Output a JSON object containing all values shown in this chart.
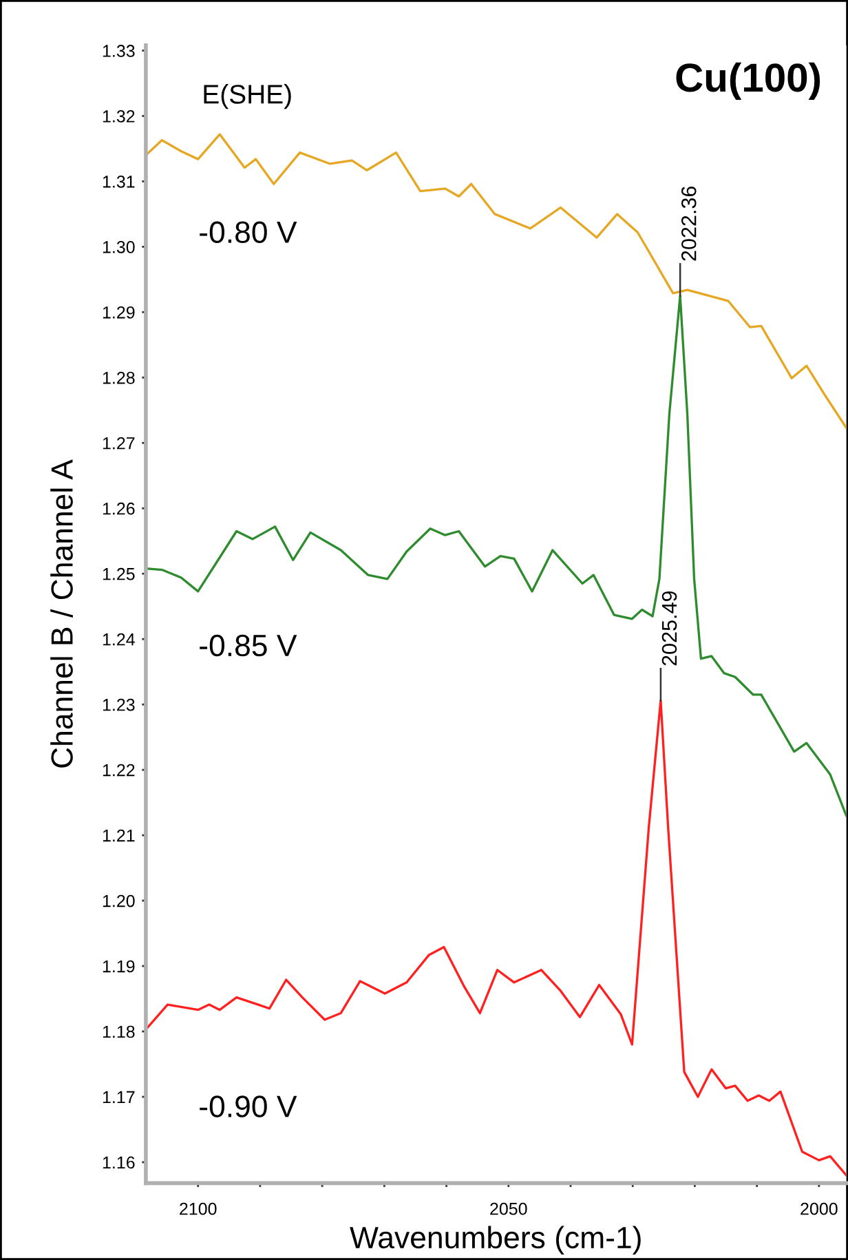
{
  "chart_data": {
    "type": "line",
    "title": "Cu(100)",
    "xlabel": "Wavenumbers (cm-1)",
    "ylabel": "Channel B / Channel A",
    "xlim": [
      2108.4,
      1995.6
    ],
    "ylim": [
      1.1568,
      1.3308
    ],
    "xticks": [
      2100,
      {
        "value": 2090,
        "label": null
      },
      {
        "value": 2080,
        "label": null
      },
      {
        "value": 2070,
        "label": null
      },
      {
        "value": 2060,
        "label": null
      },
      2050,
      {
        "value": 2040,
        "label": null
      },
      {
        "value": 2030,
        "label": null
      },
      {
        "value": 2020,
        "label": null
      },
      {
        "value": 2010,
        "label": null
      },
      2000
    ],
    "yticks": [
      {
        "value": 1.16,
        "label": "1.16"
      },
      {
        "value": 1.17,
        "label": "1.17"
      },
      {
        "value": 1.18,
        "label": "1.18"
      },
      {
        "value": 1.19,
        "label": "1.19"
      },
      {
        "value": 1.2,
        "label": "1.20"
      },
      {
        "value": 1.21,
        "label": "1.21"
      },
      {
        "value": 1.22,
        "label": "1.22"
      },
      {
        "value": 1.23,
        "label": "1.23"
      },
      {
        "value": 1.24,
        "label": "1.24"
      },
      {
        "value": 1.25,
        "label": "1.25"
      },
      {
        "value": 1.26,
        "label": "1.26"
      },
      {
        "value": 1.27,
        "label": "1.27"
      },
      {
        "value": 1.28,
        "label": "1.28"
      },
      {
        "value": 1.29,
        "label": "1.29"
      },
      {
        "value": 1.3,
        "label": "1.30"
      },
      {
        "value": 1.31,
        "label": "1.31"
      },
      {
        "value": 1.32,
        "label": "1.32"
      },
      {
        "value": 1.33,
        "label": "1.33"
      }
    ],
    "grid": false,
    "legend": false,
    "marker": "none",
    "line_style": "solid",
    "annotations": [
      "E(SHE)",
      {
        "text": "2022.36",
        "x": 2022.36,
        "y": 1.2925
      },
      {
        "text": "2025.49",
        "x": 2025.49,
        "y": 1.2306
      }
    ],
    "series": [
      {
        "name": "-0.80 V",
        "color": "#e6a723",
        "x": [
          2108.4,
          2105.8,
          2102.7,
          2100,
          2096.5,
          2092.5,
          2090.7,
          2087.8,
          2083.6,
          2078.8,
          2075.2,
          2072.8,
          2068.1,
          2064.2,
          2060.2,
          2058,
          2056,
          2052.2,
          2046.5,
          2041.6,
          2035.8,
          2032.5,
          2029.2,
          2023.5,
          2021.2,
          2014.6,
          2011.1,
          2009.3,
          2004.4,
          2002,
          1999.1,
          1995.6
        ],
        "values": [
          1.314,
          1.3163,
          1.3146,
          1.3134,
          1.3172,
          1.3121,
          1.3134,
          1.3096,
          1.3144,
          1.3127,
          1.3132,
          1.3117,
          1.3144,
          1.3085,
          1.3089,
          1.3077,
          1.3096,
          1.305,
          1.3028,
          1.306,
          1.3014,
          1.305,
          1.3022,
          1.2929,
          1.2934,
          1.2917,
          1.2877,
          1.2879,
          1.2799,
          1.2818,
          1.2774,
          1.2723
        ]
      },
      {
        "name": "-0.85 V",
        "color": "#2e8b2e",
        "x": [
          2108.4,
          2105.8,
          2102.7,
          2100,
          2093.8,
          2091.2,
          2087.6,
          2084.7,
          2081.9,
          2077,
          2072.6,
          2069.5,
          2066.4,
          2062.6,
          2060.2,
          2058,
          2053.8,
          2051.3,
          2049.1,
          2046.2,
          2042.9,
          2038.1,
          2036.3,
          2033,
          2030.1,
          2028.5,
          2026.8,
          2025.7,
          2024.1,
          2022.36,
          2021.2,
          2020.1,
          2019,
          2017.3,
          2015.3,
          2013.5,
          2010.6,
          2009.3,
          2004,
          2002,
          1998.2,
          1995.6
        ],
        "values": [
          1.2508,
          1.2506,
          1.2494,
          1.2473,
          1.2565,
          1.2553,
          1.2572,
          1.2521,
          1.2563,
          1.2536,
          1.2498,
          1.2492,
          1.2534,
          1.2569,
          1.2559,
          1.2565,
          1.2511,
          1.2527,
          1.2523,
          1.2473,
          1.2536,
          1.2485,
          1.2498,
          1.2437,
          1.2431,
          1.2445,
          1.2435,
          1.2492,
          1.2744,
          1.2925,
          1.2744,
          1.2492,
          1.237,
          1.2374,
          1.2348,
          1.2342,
          1.2315,
          1.2315,
          1.2228,
          1.2241,
          1.2193,
          1.213
        ]
      },
      {
        "name": "-0.90 V",
        "color": "#ff2020",
        "x": [
          2108.4,
          2104.9,
          2100,
          2098.2,
          2096.5,
          2093.8,
          2090.3,
          2088.5,
          2085.8,
          2083.2,
          2079.6,
          2077,
          2073.9,
          2069.9,
          2066.4,
          2062.8,
          2060.4,
          2057.1,
          2054.6,
          2051.8,
          2049.1,
          2044.7,
          2041.6,
          2038.5,
          2035.4,
          2031.9,
          2030.1,
          2027.4,
          2025.49,
          2024.3,
          2021.7,
          2019.5,
          2017.3,
          2015,
          2013.5,
          2011.5,
          2009.7,
          2008,
          2006.2,
          2002.7,
          2000,
          1998.2,
          1995.6
        ],
        "values": [
          1.1803,
          1.1841,
          1.1833,
          1.1841,
          1.1833,
          1.1852,
          1.1841,
          1.1835,
          1.1879,
          1.1852,
          1.1818,
          1.1828,
          1.1877,
          1.1858,
          1.1875,
          1.1917,
          1.1929,
          1.1868,
          1.1828,
          1.1894,
          1.1875,
          1.1894,
          1.1862,
          1.1822,
          1.1871,
          1.1826,
          1.178,
          1.2113,
          1.2306,
          1.2113,
          1.1738,
          1.17,
          1.1742,
          1.1713,
          1.1717,
          1.1694,
          1.1702,
          1.1694,
          1.1708,
          1.1616,
          1.1603,
          1.1609,
          1.158
        ]
      }
    ]
  }
}
